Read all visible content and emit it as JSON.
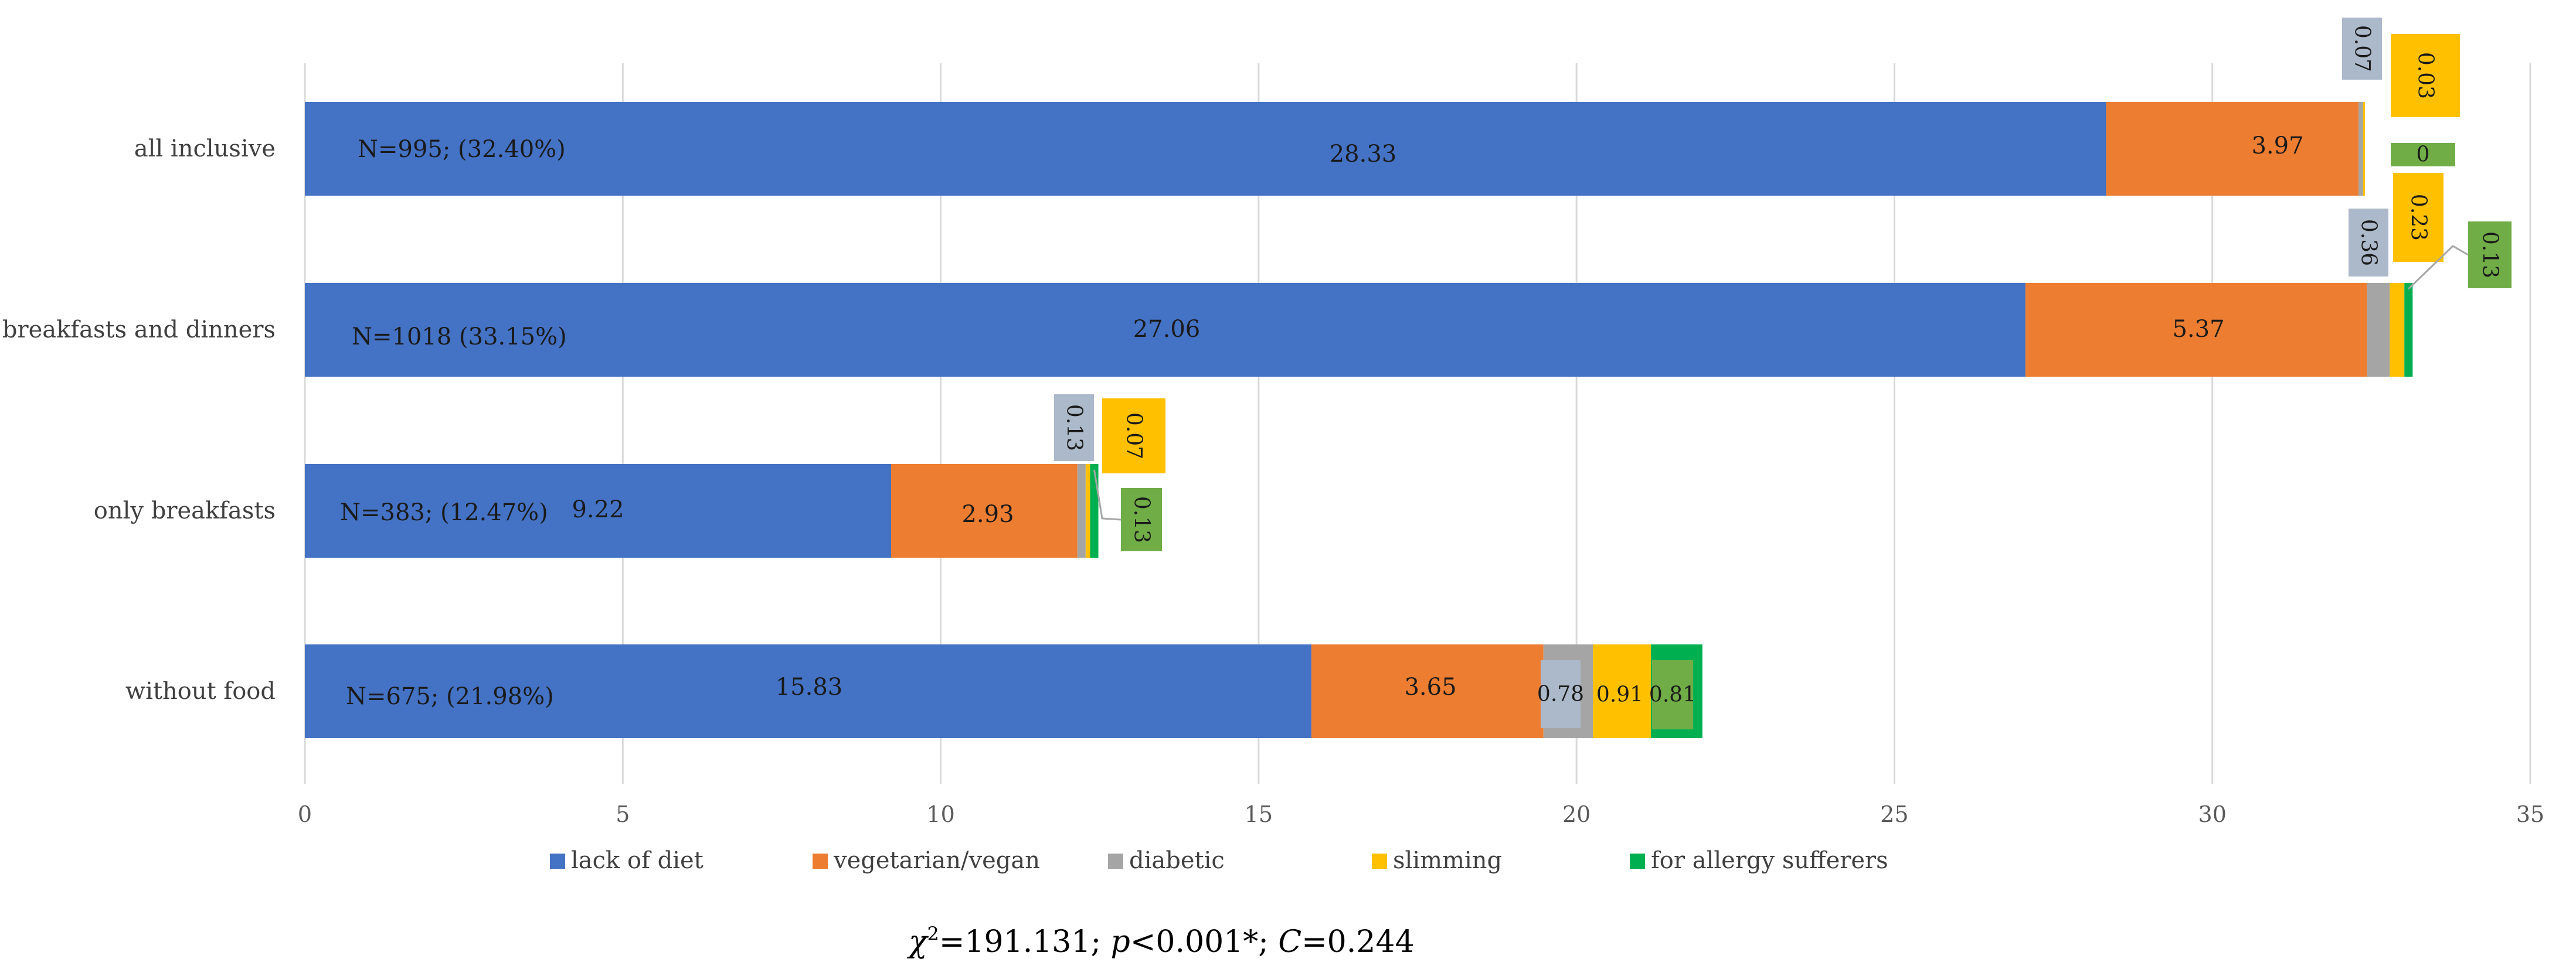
{
  "chart_data": {
    "type": "bar",
    "orientation": "horizontal",
    "stacked": true,
    "title": "",
    "xlabel": "",
    "ylabel": "",
    "xlim": [
      0,
      35
    ],
    "x_ticks": [
      0,
      5,
      10,
      15,
      20,
      25,
      30,
      35
    ],
    "grid": true,
    "legend_position": "bottom",
    "categories": [
      "all inclusive",
      "breakfasts and dinners",
      "only breakfasts",
      "without food"
    ],
    "group_labels": [
      "N=995; (32.40%)",
      "N=1018 (33.15%)",
      "N=383; (12.47%)",
      "N=675; (21.98%)"
    ],
    "series": [
      {
        "name": "lack of diet",
        "color": "#4472C4",
        "values": [
          28.33,
          27.06,
          9.22,
          15.83
        ],
        "labels": [
          "28.33",
          "27.06",
          "9.22",
          "15.83"
        ]
      },
      {
        "name": "vegetarian/vegan",
        "color": "#ED7D31",
        "values": [
          3.97,
          5.37,
          2.93,
          3.65
        ],
        "labels": [
          "3.97",
          "5.37",
          "2.93",
          "3.65"
        ]
      },
      {
        "name": "diabetic",
        "color": "#A5A5A5",
        "values": [
          0.07,
          0.36,
          0.13,
          0.78
        ],
        "labels": [
          "0.07",
          "0.36",
          "0.13",
          "0.78"
        ]
      },
      {
        "name": "slimming",
        "color": "#FFC000",
        "values": [
          0.03,
          0.23,
          0.07,
          0.91
        ],
        "labels": [
          "0.03",
          "0.23",
          "0.07",
          "0.91"
        ]
      },
      {
        "name": "for allergy sufferers",
        "color": "#00B050",
        "values": [
          0,
          0.13,
          0.13,
          0.81
        ],
        "labels": [
          "0",
          "0.13",
          "0.13",
          "0.81"
        ]
      }
    ],
    "label_box_colors": {
      "diabetic": "#ACB9CA",
      "slimming": "#FFC000",
      "for allergy sufferers": "#70AD47"
    },
    "annotation": {
      "chi": "χ",
      "sup": "2",
      "stat": "=191.131; ",
      "p": "p",
      "pval": "<0.001*; ",
      "c": "C",
      "cval": "=0.244"
    }
  }
}
